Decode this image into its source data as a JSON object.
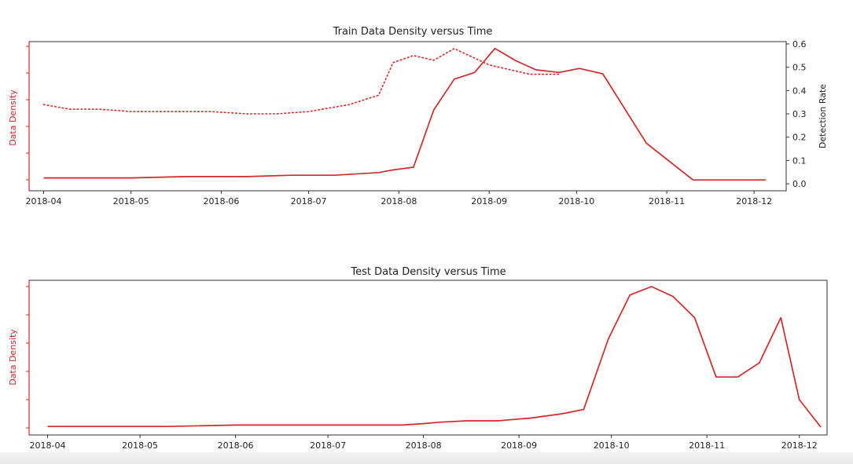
{
  "colors": {
    "density": "#d62728",
    "axis": "#333333",
    "text": "#222222"
  },
  "chart_data": [
    {
      "type": "line",
      "title": "Train Data Density versus Time",
      "ylabel": "Data Density",
      "y2label": "Detection Rate",
      "x_ticks": [
        "2018-04",
        "2018-05",
        "2018-06",
        "2018-07",
        "2018-08",
        "2018-09",
        "2018-10",
        "2018-11",
        "2018-12"
      ],
      "xlim": [
        "2018-03-27",
        "2018-12-12"
      ],
      "y2_ticks": [
        "0.0",
        "0.1",
        "0.2",
        "0.3",
        "0.4",
        "0.5",
        "0.6"
      ],
      "y2lim": [
        -0.03,
        0.61
      ],
      "ylim": [
        0,
        1
      ],
      "grid": false,
      "series": [
        {
          "style": "solid",
          "axis": "left",
          "x": [
            "2018-04-01",
            "2018-04-15",
            "2018-05-01",
            "2018-05-20",
            "2018-06-10",
            "2018-06-25",
            "2018-07-10",
            "2018-07-25",
            "2018-07-30",
            "2018-08-06",
            "2018-08-13",
            "2018-08-20",
            "2018-08-27",
            "2018-09-03",
            "2018-09-10",
            "2018-09-17",
            "2018-09-25",
            "2018-10-02",
            "2018-10-10",
            "2018-10-25",
            "2018-11-10",
            "2018-11-25",
            "2018-12-05"
          ],
          "y": [
            0.02,
            0.02,
            0.02,
            0.03,
            0.03,
            0.04,
            0.04,
            0.06,
            0.08,
            0.1,
            0.53,
            0.76,
            0.81,
            0.99,
            0.9,
            0.83,
            0.81,
            0.84,
            0.8,
            0.28,
            0.005,
            0.005,
            0.005
          ]
        },
        {
          "style": "dotted",
          "axis": "right",
          "x": [
            "2018-04-01",
            "2018-04-10",
            "2018-04-20",
            "2018-05-01",
            "2018-05-15",
            "2018-05-28",
            "2018-06-10",
            "2018-06-20",
            "2018-07-01",
            "2018-07-15",
            "2018-07-25",
            "2018-07-30",
            "2018-08-06",
            "2018-08-13",
            "2018-08-20",
            "2018-09-01",
            "2018-09-15",
            "2018-09-25"
          ],
          "y": [
            0.34,
            0.32,
            0.32,
            0.31,
            0.31,
            0.31,
            0.3,
            0.3,
            0.31,
            0.34,
            0.38,
            0.52,
            0.55,
            0.53,
            0.58,
            0.51,
            0.47,
            0.47
          ]
        }
      ]
    },
    {
      "type": "line",
      "title": "Test Data Density versus Time",
      "ylabel": "Data Density",
      "x_ticks": [
        "2018-04",
        "2018-05",
        "2018-06",
        "2018-07",
        "2018-08",
        "2018-09",
        "2018-10",
        "2018-11",
        "2018-12"
      ],
      "xlim": [
        "2018-03-26",
        "2018-12-10"
      ],
      "ylim": [
        0,
        1
      ],
      "grid": false,
      "series": [
        {
          "style": "solid",
          "axis": "left",
          "x": [
            "2018-04-01",
            "2018-04-20",
            "2018-05-10",
            "2018-06-01",
            "2018-06-20",
            "2018-07-10",
            "2018-07-25",
            "2018-08-01",
            "2018-08-06",
            "2018-08-15",
            "2018-08-25",
            "2018-09-05",
            "2018-09-15",
            "2018-09-22",
            "2018-09-30",
            "2018-10-07",
            "2018-10-14",
            "2018-10-21",
            "2018-10-28",
            "2018-11-04",
            "2018-11-11",
            "2018-11-18",
            "2018-11-25",
            "2018-12-01",
            "2018-12-08"
          ],
          "y": [
            0.01,
            0.01,
            0.01,
            0.02,
            0.02,
            0.02,
            0.02,
            0.03,
            0.04,
            0.05,
            0.05,
            0.07,
            0.1,
            0.13,
            0.63,
            0.94,
            1.0,
            0.93,
            0.78,
            0.36,
            0.36,
            0.46,
            0.78,
            0.2,
            0.005
          ]
        }
      ]
    }
  ]
}
